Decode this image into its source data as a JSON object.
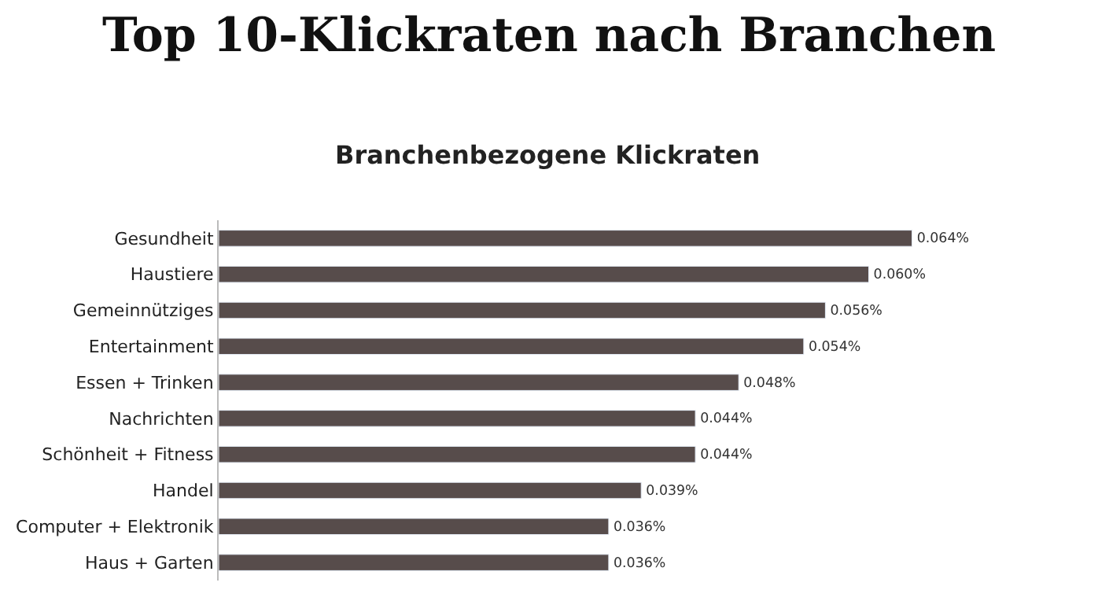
{
  "chart_data": {
    "type": "bar",
    "orientation": "horizontal",
    "title": "Top 10-Klickraten nach Branchen",
    "subtitle": "Branchenbezogene Klickraten",
    "categories": [
      "Gesundheit",
      "Haustiere",
      "Gemeinnütziges",
      "Entertainment",
      "Essen + Trinken",
      "Nachrichten",
      "Schönheit + Fitness",
      "Handel",
      "Computer + Elektronik",
      "Haus + Garten"
    ],
    "values": [
      0.064,
      0.06,
      0.056,
      0.054,
      0.048,
      0.044,
      0.044,
      0.039,
      0.036,
      0.036
    ],
    "value_labels": [
      "0.064%",
      "0.060%",
      "0.056%",
      "0.054%",
      "0.048%",
      "0.044%",
      "0.044%",
      "0.039%",
      "0.036%",
      "0.036%"
    ],
    "color": "#574c4b",
    "legend": false
  }
}
